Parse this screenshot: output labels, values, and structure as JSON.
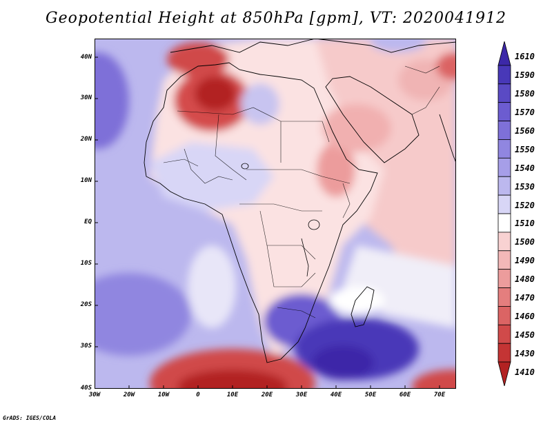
{
  "title": "Geopotential Height at 850hPa [gpm], VT: 2020041912",
  "footer": "GrADS: IGES/COLA",
  "axes": {
    "lat_labels": [
      "40N",
      "30N",
      "20N",
      "10N",
      "EQ",
      "10S",
      "20S",
      "30S",
      "40S"
    ],
    "lon_labels": [
      "30W",
      "20W",
      "10W",
      "0",
      "10E",
      "20E",
      "30E",
      "40E",
      "50E",
      "60E",
      "70E"
    ]
  },
  "colorbar": {
    "levels": [
      "1610",
      "1590",
      "1580",
      "1570",
      "1560",
      "1550",
      "1540",
      "1530",
      "1520",
      "1510",
      "1500",
      "1490",
      "1480",
      "1470",
      "1460",
      "1450",
      "1430",
      "1410"
    ],
    "colors": [
      "#3c28a8",
      "#4838b8",
      "#5a4ac4",
      "#6c5cd0",
      "#7e70d8",
      "#9086e0",
      "#a69ee8",
      "#bcb8ee",
      "#d8d6f6",
      "#ffffff",
      "#f8d2d2",
      "#f3b8b8",
      "#ec9c9c",
      "#e47e7e",
      "#db6464",
      "#d04a4a",
      "#c43434",
      "#b22222"
    ]
  },
  "map": {
    "ocean": "#bcb8ee",
    "land_default": "#f8d2d2"
  }
}
